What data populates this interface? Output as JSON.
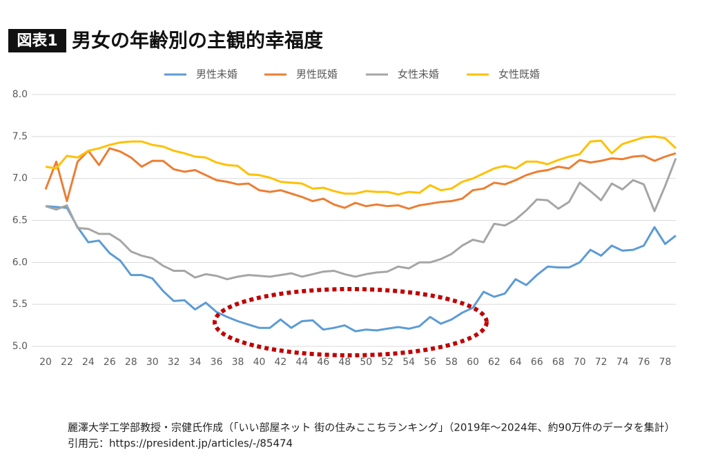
{
  "chart_data": {
    "type": "line",
    "badge": "図表1",
    "title": "男女の年齢別の主観的幸福度",
    "legend": "top",
    "grid": true,
    "x": [
      20,
      21,
      22,
      23,
      24,
      25,
      26,
      27,
      28,
      29,
      30,
      31,
      32,
      33,
      34,
      35,
      36,
      37,
      38,
      39,
      40,
      41,
      42,
      43,
      44,
      45,
      46,
      47,
      48,
      49,
      50,
      51,
      52,
      53,
      54,
      55,
      56,
      57,
      58,
      59,
      60,
      61,
      62,
      63,
      64,
      65,
      66,
      67,
      68,
      69,
      70,
      71,
      72,
      73,
      74,
      75,
      76,
      77,
      78,
      79
    ],
    "xlim": [
      20,
      79
    ],
    "xticks": [
      20,
      22,
      24,
      26,
      28,
      30,
      32,
      34,
      36,
      38,
      40,
      42,
      44,
      46,
      48,
      50,
      52,
      54,
      56,
      58,
      60,
      62,
      64,
      66,
      68,
      70,
      72,
      74,
      76,
      78
    ],
    "ylim": [
      5,
      8
    ],
    "yticks": [
      {
        "value": 5,
        "label": "5.0"
      },
      5.5,
      {
        "value": 6,
        "label": "6.0"
      },
      6.5,
      {
        "value": 7,
        "label": "7.0"
      },
      7.5,
      {
        "value": 8,
        "label": "8.0"
      }
    ],
    "series": [
      {
        "name": "男性未婚",
        "color": "#5b9bd5",
        "values": [
          6.67,
          6.66,
          6.65,
          6.42,
          6.24,
          6.26,
          6.11,
          6.02,
          5.85,
          5.85,
          5.81,
          5.66,
          5.54,
          5.55,
          5.44,
          5.52,
          5.41,
          5.35,
          5.3,
          5.26,
          5.22,
          5.22,
          5.32,
          5.22,
          5.3,
          5.31,
          5.2,
          5.22,
          5.25,
          5.18,
          5.2,
          5.19,
          5.21,
          5.23,
          5.21,
          5.24,
          5.35,
          5.27,
          5.32,
          5.4,
          5.46,
          5.65,
          5.59,
          5.63,
          5.8,
          5.73,
          5.85,
          5.95,
          5.94,
          5.94,
          6.0,
          6.15,
          6.08,
          6.2,
          6.14,
          6.15,
          6.2,
          6.42,
          6.22,
          6.32
        ]
      },
      {
        "name": "男性既婚",
        "color": "#ed7d31",
        "values": [
          6.87,
          7.2,
          6.73,
          7.2,
          7.33,
          7.16,
          7.36,
          7.32,
          7.25,
          7.14,
          7.21,
          7.21,
          7.11,
          7.08,
          7.1,
          7.04,
          6.98,
          6.96,
          6.93,
          6.94,
          6.86,
          6.84,
          6.86,
          6.82,
          6.78,
          6.73,
          6.76,
          6.69,
          6.65,
          6.71,
          6.67,
          6.69,
          6.67,
          6.68,
          6.64,
          6.68,
          6.7,
          6.72,
          6.73,
          6.76,
          6.86,
          6.88,
          6.95,
          6.93,
          6.98,
          7.04,
          7.08,
          7.1,
          7.14,
          7.12,
          7.22,
          7.19,
          7.21,
          7.24,
          7.23,
          7.26,
          7.27,
          7.21,
          7.26,
          7.3
        ]
      },
      {
        "name": "女性未婚",
        "color": "#a5a5a5",
        "values": [
          6.67,
          6.63,
          6.68,
          6.41,
          6.4,
          6.34,
          6.34,
          6.26,
          6.13,
          6.08,
          6.05,
          5.96,
          5.9,
          5.9,
          5.82,
          5.86,
          5.84,
          5.8,
          5.83,
          5.85,
          5.84,
          5.83,
          5.85,
          5.87,
          5.83,
          5.86,
          5.89,
          5.9,
          5.86,
          5.83,
          5.86,
          5.88,
          5.89,
          5.95,
          5.93,
          6.0,
          6.0,
          6.04,
          6.1,
          6.2,
          6.27,
          6.24,
          6.46,
          6.44,
          6.51,
          6.62,
          6.75,
          6.74,
          6.64,
          6.72,
          6.95,
          6.85,
          6.74,
          6.94,
          6.87,
          6.98,
          6.93,
          6.61,
          6.91,
          7.24
        ]
      },
      {
        "name": "女性既婚",
        "color": "#ffc000",
        "values": [
          7.14,
          7.12,
          7.27,
          7.25,
          7.33,
          7.36,
          7.4,
          7.43,
          7.44,
          7.44,
          7.4,
          7.38,
          7.33,
          7.3,
          7.26,
          7.25,
          7.19,
          7.16,
          7.15,
          7.05,
          7.04,
          7.01,
          6.96,
          6.95,
          6.94,
          6.88,
          6.89,
          6.85,
          6.82,
          6.82,
          6.85,
          6.84,
          6.84,
          6.81,
          6.84,
          6.83,
          6.92,
          6.86,
          6.88,
          6.96,
          7.0,
          7.06,
          7.12,
          7.15,
          7.12,
          7.2,
          7.2,
          7.17,
          7.22,
          7.26,
          7.29,
          7.44,
          7.45,
          7.3,
          7.41,
          7.45,
          7.49,
          7.5,
          7.48,
          7.36
        ]
      }
    ]
  },
  "source": [
    "麗澤大学工学部教授・宗健氏作成（「いい部屋ネット 街の住みここちランキング」（2019年～2024年、約90万件のデータを集計）",
    "引用元：https://president.jp/articles/-/85474"
  ]
}
